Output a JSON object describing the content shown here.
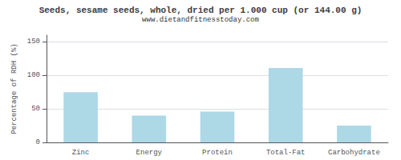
{
  "chart_data": {
    "type": "bar",
    "title": "Seeds, sesame seeds, whole, dried per 1.000 cup (or 144.00 g)",
    "subtitle": "www.dietandfitnesstoday.com",
    "categories": [
      "Zinc",
      "Energy",
      "Protein",
      "Total-Fat",
      "Carbohydrate"
    ],
    "values": [
      75,
      40,
      46,
      111,
      25
    ],
    "color": "#add8e6",
    "ylabel": "Percentage of RDH (%)",
    "ylim": [
      0,
      160
    ],
    "yticks": [
      0,
      50,
      100,
      150
    ],
    "grid": true
  }
}
